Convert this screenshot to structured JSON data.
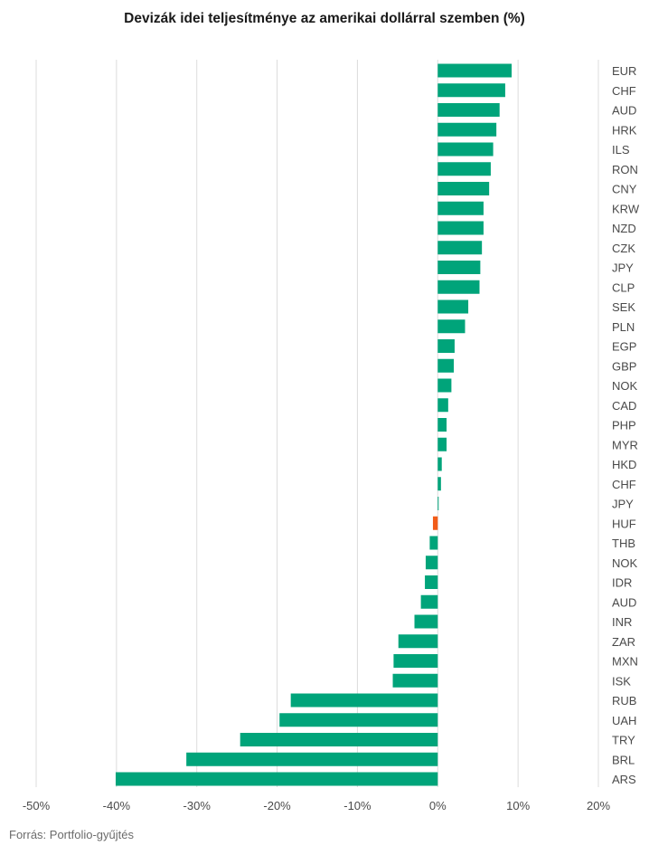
{
  "chart_data": {
    "type": "bar",
    "orientation": "horizontal",
    "title": "Devizák idei teljesítménye az amerikai dollárral szemben (%)",
    "xlabel": "",
    "ylabel": "",
    "xlim": [
      -50,
      20
    ],
    "x_ticks": [
      "-50%",
      "-40%",
      "-30%",
      "-20%",
      "-10%",
      "0%",
      "10%",
      "20%"
    ],
    "grid": "vertical",
    "colors": {
      "default": "#00a47a",
      "highlight": "#f25c19"
    },
    "highlight_category": "HUF",
    "categories": [
      "EUR",
      "CHF",
      "AUD",
      "HRK",
      "ILS",
      "RON",
      "CNY",
      "KRW",
      "NZD",
      "CZK",
      "JPY",
      "CLP",
      "SEK",
      "PLN",
      "EGP",
      "GBP",
      "NOK",
      "CAD",
      "PHP",
      "MYR",
      "HKD",
      "CHF",
      "JPY",
      "HUF",
      "THB",
      "NOK",
      "IDR",
      "AUD",
      "INR",
      "ZAR",
      "MXN",
      "ISK",
      "RUB",
      "UAH",
      "TRY",
      "BRL",
      "ARS"
    ],
    "values": [
      9.2,
      8.4,
      7.7,
      7.3,
      6.9,
      6.6,
      6.4,
      5.7,
      5.7,
      5.5,
      5.3,
      5.2,
      3.8,
      3.4,
      2.1,
      2.0,
      1.7,
      1.3,
      1.1,
      1.1,
      0.5,
      0.4,
      0.1,
      -0.6,
      -1.0,
      -1.5,
      -1.6,
      -2.1,
      -2.9,
      -4.9,
      -5.5,
      -5.6,
      -18.3,
      -19.7,
      -24.6,
      -31.3,
      -40.1
    ]
  },
  "source": "Forrás: Portfolio-gyűjtés"
}
